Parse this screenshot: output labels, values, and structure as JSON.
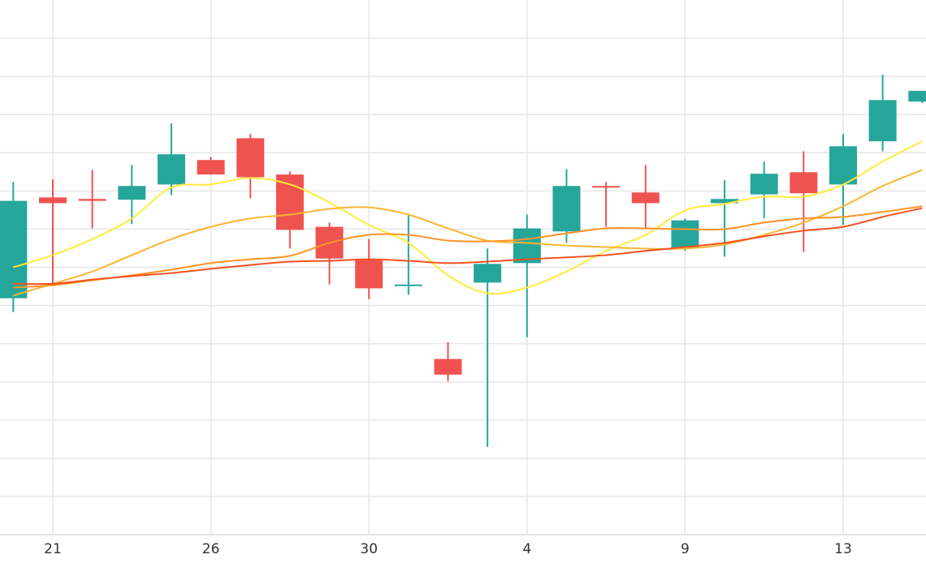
{
  "chart_data": {
    "type": "candlestick",
    "categories": [
      null,
      "21",
      null,
      null,
      null,
      "26",
      null,
      null,
      null,
      "30",
      null,
      null,
      null,
      "4",
      null,
      null,
      null,
      "9",
      null,
      null,
      null,
      "13",
      null,
      null
    ],
    "open": [
      6.19,
      8.83,
      8.79,
      8.77,
      9.17,
      9.81,
      10.38,
      9.43,
      8.06,
      7.21,
      6.55,
      4.6,
      6.6,
      7.11,
      7.94,
      9.13,
      8.96,
      7.51,
      8.68,
      8.91,
      9.49,
      9.17,
      10.3,
      11.34
    ],
    "high": [
      9.23,
      9.3,
      9.55,
      9.68,
      10.77,
      9.89,
      10.49,
      9.51,
      8.17,
      7.74,
      8.4,
      5.04,
      7.49,
      8.38,
      9.57,
      9.23,
      9.68,
      8.28,
      9.28,
      9.77,
      10.04,
      10.49,
      12.04,
      11.62
    ],
    "low": [
      5.83,
      6.53,
      8.02,
      8.13,
      8.89,
      9.43,
      8.81,
      7.49,
      6.55,
      6.17,
      6.28,
      4.02,
      2.3,
      5.17,
      7.64,
      8.06,
      8.02,
      7.43,
      7.28,
      8.28,
      7.4,
      8.11,
      10.04,
      11.3
    ],
    "close": [
      8.74,
      8.68,
      8.74,
      9.13,
      9.96,
      9.43,
      9.36,
      7.98,
      7.23,
      6.45,
      6.55,
      4.19,
      7.09,
      8.02,
      9.13,
      9.09,
      8.68,
      8.23,
      8.79,
      9.45,
      8.94,
      10.17,
      11.38,
      11.62
    ],
    "up_color": "#26a69a",
    "down_color": "#ef5350",
    "lines": [
      {
        "color": "#ffeb3b",
        "values": [
          7.0,
          7.32,
          7.74,
          8.28,
          9.09,
          9.17,
          9.34,
          9.17,
          8.7,
          8.11,
          7.64,
          6.79,
          6.32,
          6.47,
          6.89,
          7.43,
          7.85,
          8.49,
          8.66,
          8.85,
          8.85,
          9.17,
          9.77,
          10.3
        ]
      },
      {
        "color": "#f9b531",
        "values": [
          6.26,
          6.57,
          6.89,
          7.32,
          7.74,
          8.06,
          8.28,
          8.38,
          8.53,
          8.57,
          8.38,
          8.02,
          7.7,
          7.64,
          7.57,
          7.53,
          7.49,
          7.49,
          7.6,
          7.85,
          8.17,
          8.6,
          9.13,
          9.55
        ]
      },
      {
        "color": "#ff9326",
        "values": [
          6.47,
          6.53,
          6.66,
          6.79,
          6.94,
          7.11,
          7.21,
          7.3,
          7.64,
          7.85,
          7.85,
          7.7,
          7.68,
          7.74,
          7.89,
          8.02,
          8.02,
          8.0,
          8.0,
          8.17,
          8.28,
          8.32,
          8.45,
          8.6
        ]
      },
      {
        "color": "#f4511e",
        "values": [
          6.57,
          6.57,
          6.68,
          6.77,
          6.85,
          6.96,
          7.06,
          7.15,
          7.17,
          7.21,
          7.17,
          7.11,
          7.15,
          7.21,
          7.26,
          7.32,
          7.43,
          7.53,
          7.64,
          7.81,
          7.96,
          8.06,
          8.32,
          8.55
        ]
      }
    ],
    "ylim": [
      0,
      14
    ],
    "yticks": [
      0,
      1,
      2,
      3,
      4,
      5,
      6,
      7,
      8,
      9,
      10,
      11,
      12,
      13
    ],
    "grid": true
  }
}
